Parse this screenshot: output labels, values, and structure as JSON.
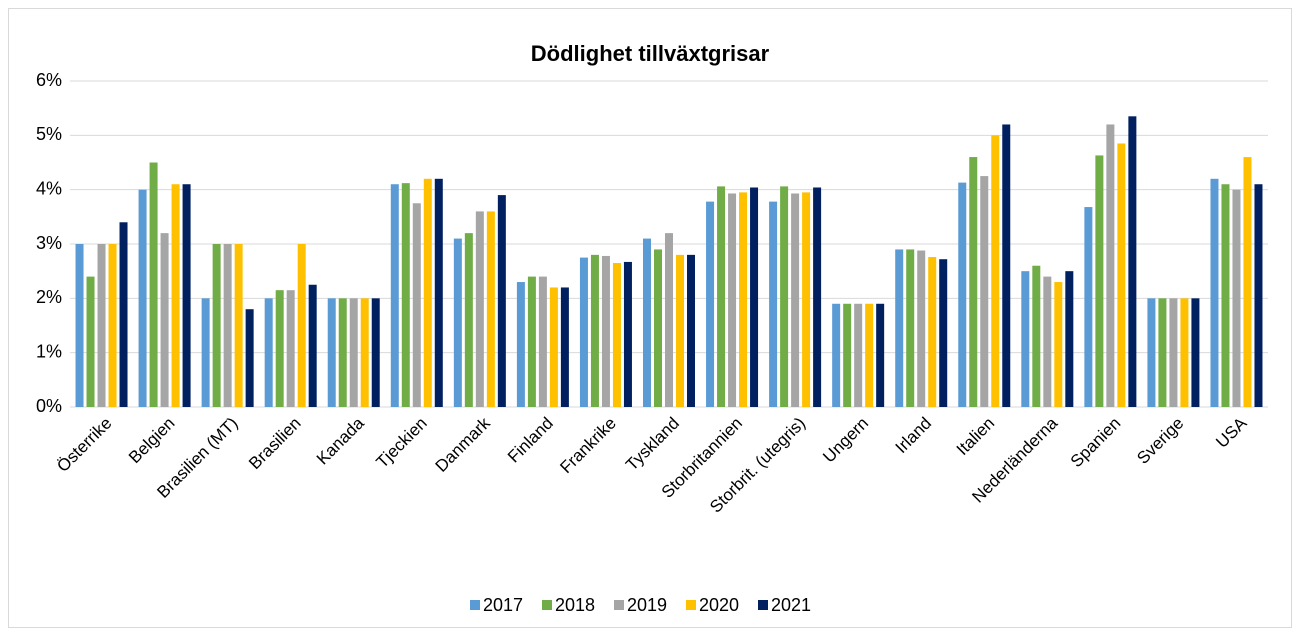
{
  "chart_data": {
    "type": "bar",
    "title": "Dödlighet tillväxtgrisar",
    "categories": [
      "Österrike",
      "Belgien",
      "Brasilien (MT)",
      "Brasilien",
      "Kanada",
      "Tjeckien",
      "Danmark",
      "Finland",
      "Frankrike",
      "Tyskland",
      "Storbritannien",
      "Storbrit. (utegris)",
      "Ungern",
      "Irland",
      "Italien",
      "Nederländerna",
      "Spanien",
      "Sverige",
      "USA"
    ],
    "series": [
      {
        "name": "2017",
        "color": "#5b9bd5",
        "values": [
          3.0,
          4.0,
          2.0,
          2.0,
          2.0,
          4.1,
          3.1,
          2.3,
          2.75,
          3.1,
          3.78,
          3.78,
          1.9,
          2.9,
          4.13,
          2.5,
          3.68,
          2.0,
          4.2
        ]
      },
      {
        "name": "2018",
        "color": "#70ad47",
        "values": [
          2.4,
          4.5,
          3.0,
          2.15,
          2.0,
          4.12,
          3.2,
          2.4,
          2.8,
          2.9,
          4.06,
          4.06,
          1.9,
          2.9,
          4.6,
          2.6,
          4.63,
          2.0,
          4.1
        ]
      },
      {
        "name": "2019",
        "color": "#a5a5a5",
        "values": [
          3.0,
          3.2,
          3.0,
          2.15,
          2.0,
          3.75,
          3.6,
          2.4,
          2.78,
          3.2,
          3.93,
          3.93,
          1.9,
          2.88,
          4.25,
          2.4,
          5.2,
          2.0,
          4.0
        ]
      },
      {
        "name": "2020",
        "color": "#ffc000",
        "values": [
          3.0,
          4.1,
          3.0,
          3.0,
          2.0,
          4.2,
          3.6,
          2.2,
          2.65,
          2.8,
          3.95,
          3.95,
          1.9,
          2.76,
          5.0,
          2.3,
          4.85,
          2.0,
          4.6
        ]
      },
      {
        "name": "2021",
        "color": "#002060",
        "values": [
          3.4,
          4.1,
          1.8,
          2.25,
          2.0,
          4.2,
          3.9,
          2.2,
          2.67,
          2.8,
          4.04,
          4.04,
          1.9,
          2.72,
          5.2,
          2.5,
          5.35,
          2.0,
          4.1
        ]
      }
    ],
    "ylim": [
      0,
      6
    ],
    "yticks": [
      {
        "value": 0,
        "label": "0%"
      },
      {
        "value": 1,
        "label": "1%"
      },
      {
        "value": 2,
        "label": "2%"
      },
      {
        "value": 3,
        "label": "3%"
      },
      {
        "value": 4,
        "label": "4%"
      },
      {
        "value": 5,
        "label": "5%"
      },
      {
        "value": 6,
        "label": "6%"
      }
    ],
    "grid": true,
    "legend": "bottom"
  }
}
